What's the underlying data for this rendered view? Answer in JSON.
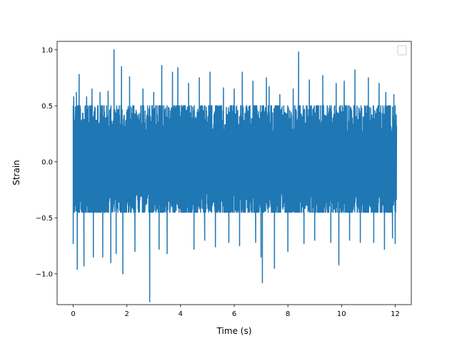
{
  "chart_data": {
    "type": "line",
    "title": "",
    "xlabel": "Time (s)",
    "ylabel": "Strain",
    "xlim": [
      -0.6,
      12.6
    ],
    "ylim": [
      -1.275,
      1.075
    ],
    "x_ticks": [
      0,
      2,
      4,
      6,
      8,
      10,
      12
    ],
    "x_tick_labels": [
      "0",
      "2",
      "4",
      "6",
      "8",
      "10",
      "12"
    ],
    "y_ticks": [
      -1.0,
      -0.5,
      0.0,
      0.5,
      1.0
    ],
    "y_tick_labels": [
      "−1.0",
      "−0.5",
      "0.0",
      "0.5",
      "1.0"
    ],
    "grid": false,
    "legend": {
      "placement": "top-right",
      "entries": []
    },
    "series": [
      {
        "color": "#1f77b4",
        "x_start": 0,
        "x_end": 12.05,
        "baseline_min": -0.45,
        "baseline_max": 0.5,
        "extremes": [
          {
            "x": 0.0,
            "y": -0.73
          },
          {
            "x": 0.02,
            "y": 0.58
          },
          {
            "x": 0.12,
            "y": 0.62
          },
          {
            "x": 0.15,
            "y": -0.96
          },
          {
            "x": 0.22,
            "y": 0.78
          },
          {
            "x": 0.4,
            "y": -0.93
          },
          {
            "x": 0.5,
            "y": 0.58
          },
          {
            "x": 0.7,
            "y": 0.65
          },
          {
            "x": 0.75,
            "y": -0.85
          },
          {
            "x": 1.0,
            "y": 0.62
          },
          {
            "x": 1.1,
            "y": -0.85
          },
          {
            "x": 1.3,
            "y": 0.63
          },
          {
            "x": 1.4,
            "y": -0.9
          },
          {
            "x": 1.52,
            "y": 1.0
          },
          {
            "x": 1.6,
            "y": -0.82
          },
          {
            "x": 1.8,
            "y": 0.85
          },
          {
            "x": 1.85,
            "y": -1.0
          },
          {
            "x": 2.1,
            "y": 0.76
          },
          {
            "x": 2.3,
            "y": -0.8
          },
          {
            "x": 2.6,
            "y": 0.65
          },
          {
            "x": 2.85,
            "y": -1.25
          },
          {
            "x": 3.0,
            "y": 0.62
          },
          {
            "x": 3.2,
            "y": -0.78
          },
          {
            "x": 3.3,
            "y": 0.86
          },
          {
            "x": 3.5,
            "y": -0.82
          },
          {
            "x": 3.7,
            "y": 0.8
          },
          {
            "x": 3.9,
            "y": 0.84
          },
          {
            "x": 4.3,
            "y": 0.7
          },
          {
            "x": 4.5,
            "y": -0.78
          },
          {
            "x": 4.7,
            "y": 0.75
          },
          {
            "x": 4.9,
            "y": -0.7
          },
          {
            "x": 5.1,
            "y": 0.8
          },
          {
            "x": 5.3,
            "y": -0.76
          },
          {
            "x": 5.6,
            "y": 0.66
          },
          {
            "x": 5.8,
            "y": -0.72
          },
          {
            "x": 6.0,
            "y": 0.65
          },
          {
            "x": 6.2,
            "y": -0.75
          },
          {
            "x": 6.3,
            "y": 0.8
          },
          {
            "x": 6.7,
            "y": 0.72
          },
          {
            "x": 6.8,
            "y": -0.72
          },
          {
            "x": 7.0,
            "y": -0.85
          },
          {
            "x": 7.05,
            "y": -1.08
          },
          {
            "x": 7.2,
            "y": 0.75
          },
          {
            "x": 7.3,
            "y": 0.67
          },
          {
            "x": 7.5,
            "y": -0.95
          },
          {
            "x": 7.7,
            "y": 0.6
          },
          {
            "x": 8.0,
            "y": -0.8
          },
          {
            "x": 8.2,
            "y": 0.65
          },
          {
            "x": 8.4,
            "y": 0.98
          },
          {
            "x": 8.6,
            "y": -0.73
          },
          {
            "x": 8.8,
            "y": 0.73
          },
          {
            "x": 9.0,
            "y": -0.7
          },
          {
            "x": 9.3,
            "y": 0.77
          },
          {
            "x": 9.6,
            "y": -0.72
          },
          {
            "x": 9.8,
            "y": 0.7
          },
          {
            "x": 9.9,
            "y": -0.92
          },
          {
            "x": 10.1,
            "y": 0.72
          },
          {
            "x": 10.3,
            "y": -0.7
          },
          {
            "x": 10.5,
            "y": 0.82
          },
          {
            "x": 10.7,
            "y": -0.72
          },
          {
            "x": 11.0,
            "y": 0.75
          },
          {
            "x": 11.2,
            "y": -0.72
          },
          {
            "x": 11.4,
            "y": 0.7
          },
          {
            "x": 11.6,
            "y": -0.78
          },
          {
            "x": 11.65,
            "y": 0.62
          },
          {
            "x": 11.9,
            "y": -0.68
          },
          {
            "x": 11.95,
            "y": 0.6
          },
          {
            "x": 12.0,
            "y": -0.73
          }
        ]
      }
    ]
  }
}
